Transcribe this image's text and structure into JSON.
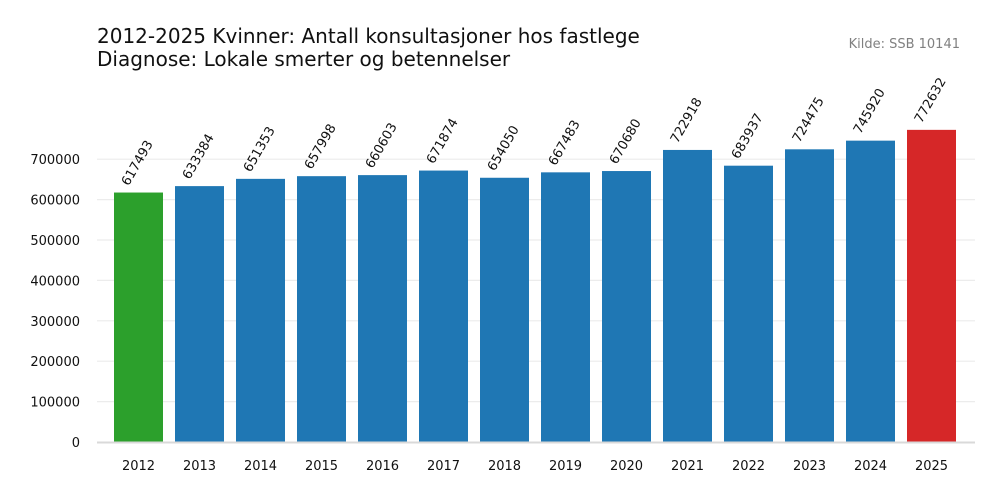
{
  "title_lines": [
    "2012-2025 Kvinner: Antall konsultasjoner hos fastlege",
    "Diagnose: Lokale smerter og betennelser"
  ],
  "source": "Kilde: SSB 10141",
  "colors": {
    "default_bar": "#1f77b4",
    "first_bar": "#2ca02c",
    "last_bar": "#d62728",
    "grid": "#ececec",
    "baseline": "#d9d9d9"
  },
  "chart_data": {
    "type": "bar",
    "categories": [
      "2012",
      "2013",
      "2014",
      "2015",
      "2016",
      "2017",
      "2018",
      "2019",
      "2020",
      "2021",
      "2022",
      "2023",
      "2024",
      "2025"
    ],
    "values": [
      617493,
      633384,
      651353,
      657998,
      660603,
      671874,
      654050,
      667483,
      670680,
      722918,
      683937,
      724475,
      745920,
      772632
    ],
    "data_labels": [
      "617493",
      "633384",
      "651353",
      "657998",
      "660603",
      "671874",
      "654050",
      "667483",
      "670680",
      "722918",
      "683937",
      "724475",
      "745920",
      "772632"
    ],
    "title": "2012-2025 Kvinner: Antall konsultasjoner hos fastlege",
    "subtitle": "Diagnose: Lokale smerter og betennelser",
    "xlabel": "",
    "ylabel": "",
    "ylim": [
      0,
      772632
    ],
    "yticks": [
      0,
      100000,
      200000,
      300000,
      400000,
      500000,
      600000,
      700000
    ],
    "ytick_labels": [
      "0",
      "100000",
      "200000",
      "300000",
      "400000",
      "500000",
      "600000",
      "700000"
    ],
    "grid": true,
    "highlight": {
      "2012": "first_bar",
      "2025": "last_bar"
    }
  }
}
